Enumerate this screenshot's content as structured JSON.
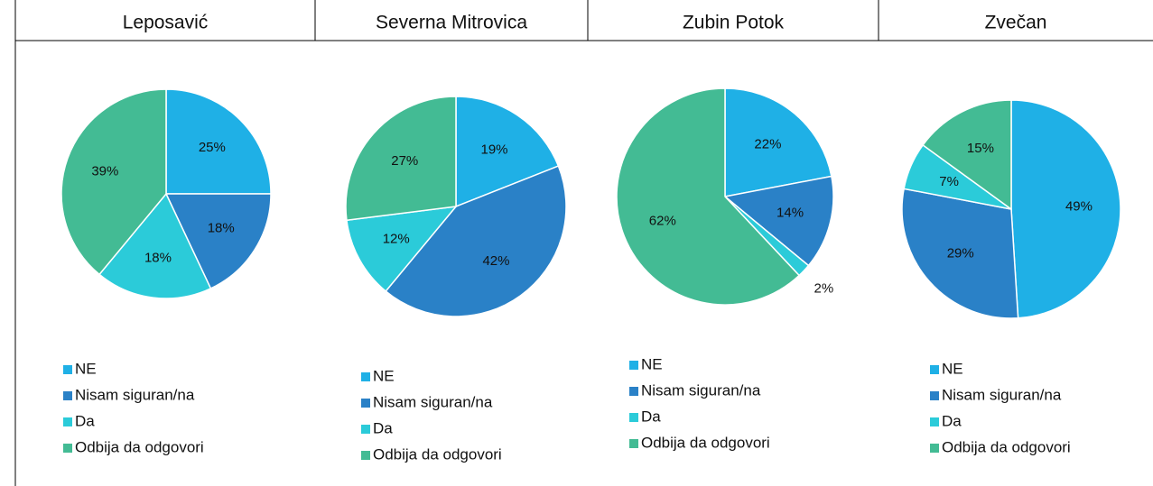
{
  "chart_data": [
    {
      "type": "pie",
      "title": "Leposavić",
      "categories": [
        "NE",
        "Nisam siguran/na",
        "Da",
        "Odbija da odgovori"
      ],
      "values": [
        25,
        18,
        18,
        39
      ],
      "value_labels": [
        "25%",
        "18%",
        "18%",
        "39%"
      ],
      "colors": [
        "#1fb0e6",
        "#2a81c7",
        "#2bcbd9",
        "#43bb94"
      ]
    },
    {
      "type": "pie",
      "title": "Severna Mitrovica",
      "categories": [
        "NE",
        "Nisam siguran/na",
        "Da",
        "Odbija da odgovori"
      ],
      "values": [
        19,
        42,
        12,
        27
      ],
      "value_labels": [
        "19%",
        "42%",
        "12%",
        "27%"
      ],
      "colors": [
        "#1fb0e6",
        "#2a81c7",
        "#2bcbd9",
        "#43bb94"
      ]
    },
    {
      "type": "pie",
      "title": "Zubin Potok",
      "categories": [
        "NE",
        "Nisam siguran/na",
        "Da",
        "Odbija da odgovori"
      ],
      "values": [
        22,
        14,
        2,
        62
      ],
      "value_labels": [
        "22%",
        "14%",
        "2%",
        "62%"
      ],
      "colors": [
        "#1fb0e6",
        "#2a81c7",
        "#2bcbd9",
        "#43bb94"
      ]
    },
    {
      "type": "pie",
      "title": "Zvečan",
      "categories": [
        "NE",
        "Nisam siguran/na",
        "Da",
        "Odbija da odgovori"
      ],
      "values": [
        49,
        29,
        7,
        15
      ],
      "value_labels": [
        "49%",
        "29%",
        "7%",
        "15%"
      ],
      "colors": [
        "#1fb0e6",
        "#2a81c7",
        "#2bcbd9",
        "#43bb94"
      ]
    }
  ]
}
